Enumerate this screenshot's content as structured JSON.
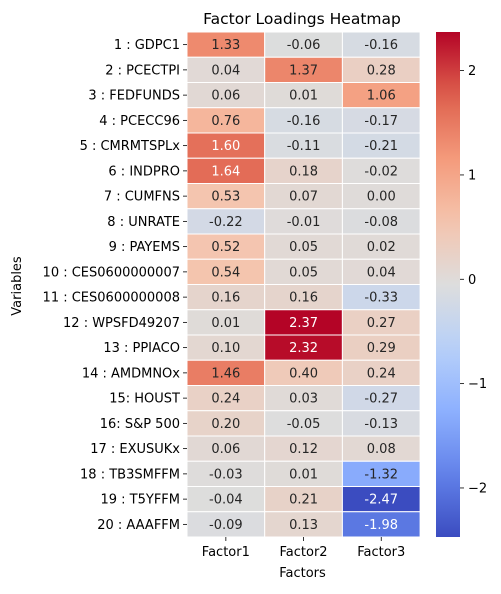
{
  "chart_data": {
    "type": "heatmap",
    "title": "Factor Loadings Heatmap",
    "xlabel": "Factors",
    "ylabel": "Variables",
    "columns": [
      "Factor1",
      "Factor2",
      "Factor3"
    ],
    "rows": [
      "1 : GDPC1",
      "2 : PCECTPI",
      "3 : FEDFUNDS",
      "4 : PCECC96",
      "5 : CMRMTSPLx",
      "6 : INDPRO",
      "7 : CUMFNS",
      "8 : UNRATE",
      "9 : PAYEMS",
      "10 : CES0600000007",
      "11 : CES0600000008",
      "12 : WPSFD49207",
      "13 : PPIACO",
      "14 : AMDMNOx",
      "15: HOUST",
      "16: S&P 500",
      "17 : EXUSUKx",
      "18 : TB3SMFFM",
      "19 : T5YFFM",
      "20 : AAAFFM"
    ],
    "cells": [
      [
        "1.33",
        "-0.06",
        "-0.16"
      ],
      [
        "0.04",
        "1.37",
        "0.28"
      ],
      [
        "0.06",
        "0.01",
        "1.06"
      ],
      [
        "0.76",
        "-0.16",
        "-0.17"
      ],
      [
        "1.60",
        "-0.11",
        "-0.21"
      ],
      [
        "1.64",
        "0.18",
        "-0.02"
      ],
      [
        "0.53",
        "0.07",
        "0.00"
      ],
      [
        "-0.22",
        "-0.01",
        "-0.08"
      ],
      [
        "0.52",
        "0.05",
        "0.02"
      ],
      [
        "0.54",
        "0.05",
        "0.04"
      ],
      [
        "0.16",
        "0.16",
        "-0.33"
      ],
      [
        "0.01",
        "2.37",
        "0.27"
      ],
      [
        "0.10",
        "2.32",
        "0.29"
      ],
      [
        "1.46",
        "0.40",
        "0.24"
      ],
      [
        "0.24",
        "0.03",
        "-0.27"
      ],
      [
        "0.20",
        "-0.05",
        "-0.13"
      ],
      [
        "0.06",
        "0.12",
        "0.08"
      ],
      [
        "-0.03",
        "0.01",
        "-1.32"
      ],
      [
        "-0.04",
        "0.21",
        "-2.47"
      ],
      [
        "-0.09",
        "0.13",
        "-1.98"
      ]
    ],
    "colormap": "coolwarm",
    "vmin": -2.47,
    "vmax": 2.37,
    "colorbar_ticks": [
      "2",
      "1",
      "0",
      "−1",
      "−2"
    ],
    "colorbar_tick_values": [
      2,
      1,
      0,
      -1,
      -2
    ]
  }
}
